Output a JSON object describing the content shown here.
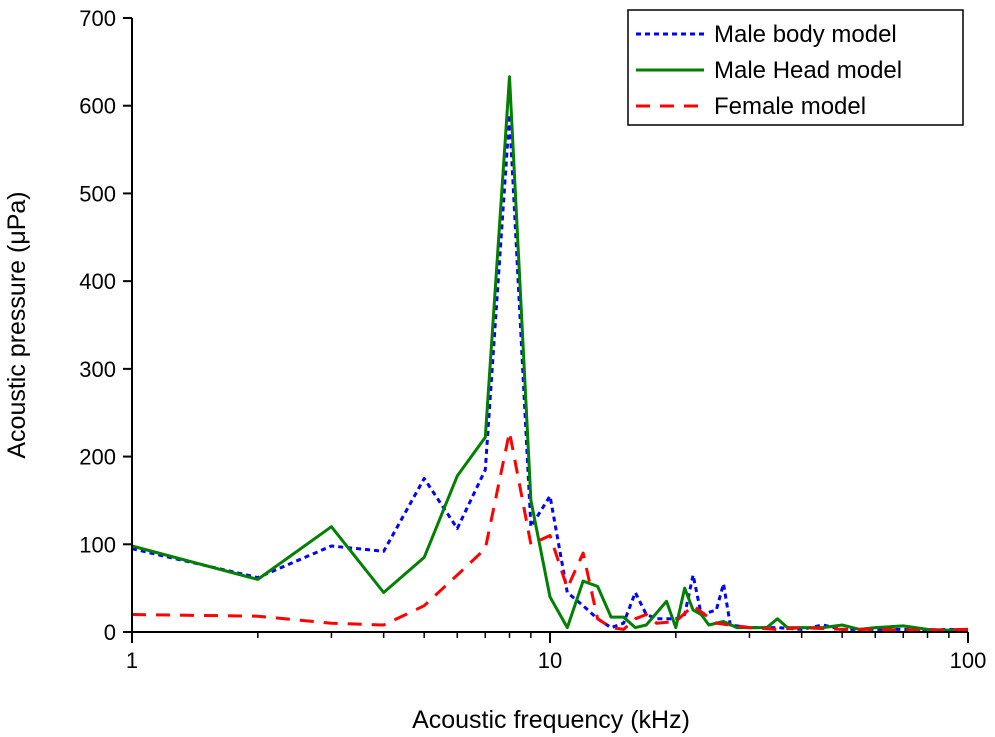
{
  "chart_data": {
    "type": "line",
    "xscale": "log",
    "xlabel": "Acoustic frequency (kHz)",
    "ylabel": "Acoustic pressure (μPa)",
    "xlim": [
      1,
      100
    ],
    "ylim": [
      0,
      700
    ],
    "xticks": [
      1,
      10,
      100
    ],
    "xtick_labels": [
      "1",
      "10",
      "100"
    ],
    "yticks": [
      0,
      100,
      200,
      300,
      400,
      500,
      600,
      700
    ],
    "ytick_labels": [
      "0",
      "100",
      "200",
      "300",
      "400",
      "500",
      "600",
      "700"
    ],
    "grid": false,
    "legend_position": "top-right",
    "series": [
      {
        "name": "Male body model",
        "color": "#0000ff",
        "style": "dotted",
        "points": [
          [
            1,
            95
          ],
          [
            2,
            62
          ],
          [
            3,
            98
          ],
          [
            4,
            92
          ],
          [
            5,
            175
          ],
          [
            6,
            118
          ],
          [
            7,
            185
          ],
          [
            8,
            590
          ],
          [
            9,
            120
          ],
          [
            10,
            155
          ],
          [
            11,
            45
          ],
          [
            12,
            30
          ],
          [
            13,
            15
          ],
          [
            14,
            5
          ],
          [
            15,
            10
          ],
          [
            16,
            45
          ],
          [
            17,
            20
          ],
          [
            18,
            15
          ],
          [
            20,
            15
          ],
          [
            21,
            20
          ],
          [
            22,
            65
          ],
          [
            23,
            20
          ],
          [
            25,
            25
          ],
          [
            26,
            55
          ],
          [
            27,
            8
          ],
          [
            30,
            5
          ],
          [
            35,
            5
          ],
          [
            40,
            3
          ],
          [
            45,
            8
          ],
          [
            50,
            3
          ],
          [
            60,
            3
          ],
          [
            70,
            3
          ],
          [
            80,
            2
          ],
          [
            90,
            3
          ],
          [
            100,
            2
          ]
        ]
      },
      {
        "name": "Male Head model",
        "color": "#007f00",
        "style": "solid",
        "points": [
          [
            1,
            98
          ],
          [
            2,
            60
          ],
          [
            3,
            120
          ],
          [
            4,
            45
          ],
          [
            5,
            85
          ],
          [
            6,
            178
          ],
          [
            7,
            222
          ],
          [
            8,
            633
          ],
          [
            9,
            150
          ],
          [
            10,
            40
          ],
          [
            11,
            5
          ],
          [
            12,
            58
          ],
          [
            13,
            52
          ],
          [
            14,
            17
          ],
          [
            15,
            17
          ],
          [
            16,
            5
          ],
          [
            17,
            8
          ],
          [
            19,
            35
          ],
          [
            20,
            5
          ],
          [
            21,
            50
          ],
          [
            22,
            25
          ],
          [
            23,
            20
          ],
          [
            24,
            8
          ],
          [
            26,
            12
          ],
          [
            28,
            5
          ],
          [
            33,
            5
          ],
          [
            35,
            15
          ],
          [
            37,
            5
          ],
          [
            40,
            5
          ],
          [
            45,
            5
          ],
          [
            50,
            8
          ],
          [
            55,
            3
          ],
          [
            60,
            5
          ],
          [
            70,
            7
          ],
          [
            80,
            3
          ],
          [
            90,
            2
          ],
          [
            100,
            3
          ]
        ]
      },
      {
        "name": "Female model",
        "color": "#ff0000",
        "style": "dashed",
        "points": [
          [
            1,
            20
          ],
          [
            2,
            18
          ],
          [
            3,
            10
          ],
          [
            4,
            8
          ],
          [
            5,
            30
          ],
          [
            6,
            65
          ],
          [
            7,
            95
          ],
          [
            8,
            228
          ],
          [
            9,
            100
          ],
          [
            10,
            110
          ],
          [
            11,
            50
          ],
          [
            12,
            90
          ],
          [
            13,
            15
          ],
          [
            14,
            5
          ],
          [
            15,
            3
          ],
          [
            16,
            15
          ],
          [
            17,
            20
          ],
          [
            18,
            10
          ],
          [
            20,
            12
          ],
          [
            22,
            30
          ],
          [
            25,
            10
          ],
          [
            30,
            5
          ],
          [
            35,
            3
          ],
          [
            40,
            5
          ],
          [
            50,
            3
          ],
          [
            60,
            3
          ],
          [
            80,
            2
          ],
          [
            100,
            3
          ]
        ]
      }
    ]
  }
}
